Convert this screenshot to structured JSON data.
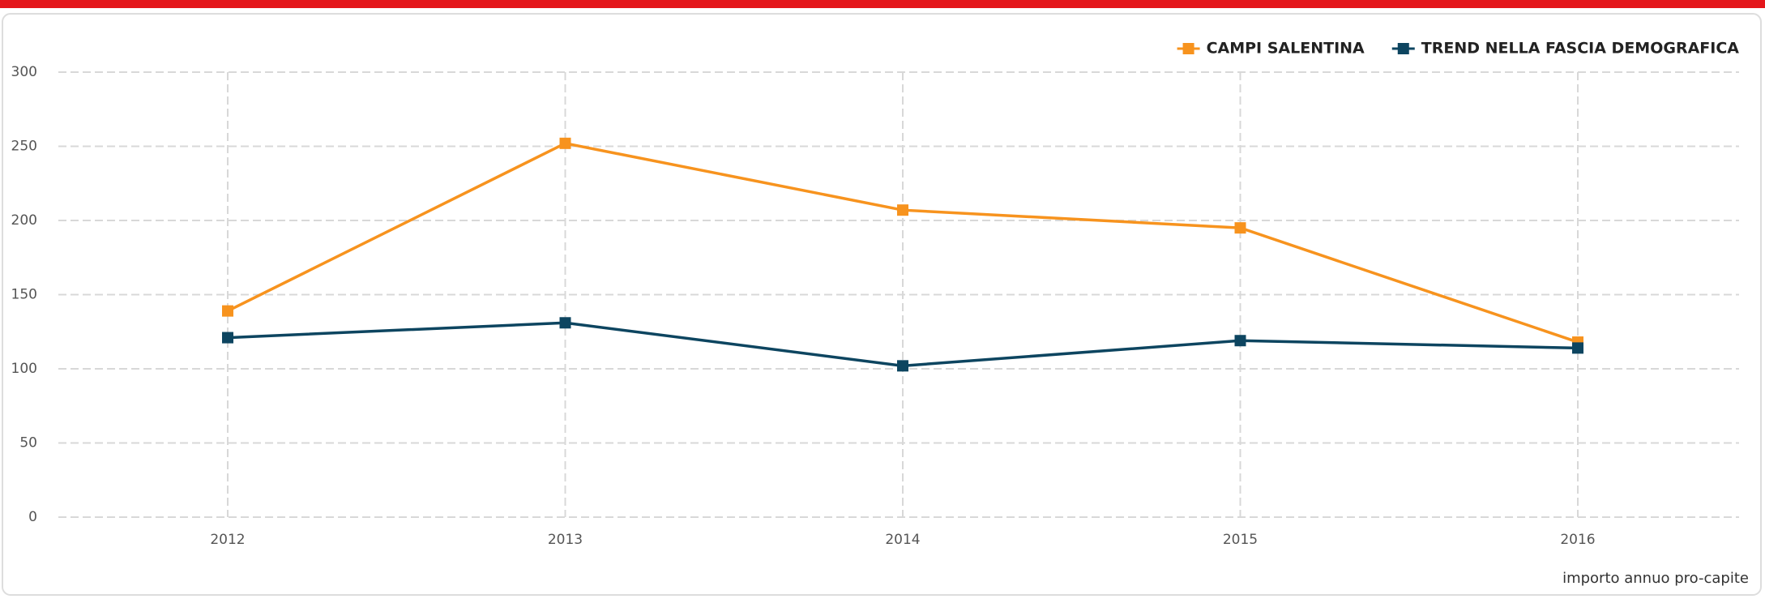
{
  "chart_data": {
    "type": "line",
    "categories": [
      "2012",
      "2013",
      "2014",
      "2015",
      "2016"
    ],
    "series": [
      {
        "name": "CAMPI SALENTINA",
        "color": "#f7931e",
        "values": [
          139,
          252,
          207,
          195,
          118
        ]
      },
      {
        "name": "TREND NELLA FASCIA DEMOGRAFICA",
        "color": "#0d4560",
        "values": [
          121,
          131,
          102,
          119,
          114
        ]
      }
    ],
    "ylim": [
      0,
      300
    ],
    "yticks": [
      0,
      50,
      100,
      150,
      200,
      250,
      300
    ],
    "grid": true,
    "legend": "top-right",
    "note": "importo annuo pro-capite"
  }
}
